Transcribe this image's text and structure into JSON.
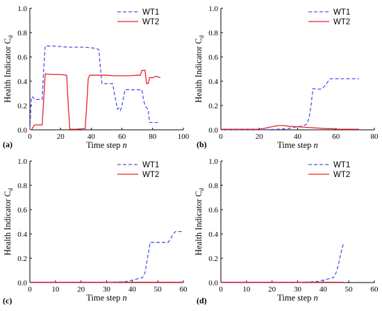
{
  "chart_data": [
    {
      "type": "line",
      "panel_label": "(a)",
      "xlabel": "Time step",
      "xlabel_var": "n",
      "ylabel": "Health Indicator C",
      "ylabel_sub": "d",
      "xlim": [
        0,
        100
      ],
      "xticks": [
        "0",
        "20",
        "40",
        "60",
        "80",
        "100"
      ],
      "ylim": [
        0,
        1.0
      ],
      "yticks": [
        "0.0",
        "0.2",
        "0.4",
        "0.6",
        "0.8",
        "1.0"
      ],
      "legend_position": "top-right",
      "series": [
        {
          "name": "WT1",
          "color": "#4a54e8",
          "dash": "dashed",
          "x": [
            0,
            1,
            2,
            3,
            6,
            8,
            9,
            10,
            15,
            20,
            25,
            30,
            35,
            40,
            43,
            45,
            46,
            47,
            48,
            50,
            52,
            54,
            55,
            56,
            57,
            58,
            59,
            60,
            62,
            65,
            70,
            73,
            74,
            75,
            76,
            77,
            78,
            80,
            85
          ],
          "y": [
            0.0,
            0.27,
            0.27,
            0.25,
            0.25,
            0.25,
            0.5,
            0.69,
            0.69,
            0.685,
            0.68,
            0.68,
            0.68,
            0.675,
            0.67,
            0.66,
            0.5,
            0.38,
            0.38,
            0.38,
            0.38,
            0.38,
            0.3,
            0.24,
            0.17,
            0.18,
            0.16,
            0.2,
            0.33,
            0.33,
            0.33,
            0.33,
            0.25,
            0.2,
            0.18,
            0.17,
            0.06,
            0.06,
            0.06
          ]
        },
        {
          "name": "WT2",
          "color": "#e8212a",
          "dash": "solid",
          "x": [
            0,
            1,
            2,
            3,
            6,
            8,
            9,
            10,
            15,
            20,
            24,
            25,
            26,
            30,
            36,
            37,
            38,
            39,
            40,
            45,
            50,
            55,
            60,
            65,
            70,
            72,
            73,
            74,
            75,
            76,
            77,
            78,
            80,
            82,
            85
          ],
          "y": [
            0.0,
            0.0,
            0.02,
            0.04,
            0.04,
            0.04,
            0.25,
            0.46,
            0.455,
            0.455,
            0.45,
            0.2,
            0.005,
            0.005,
            0.01,
            0.2,
            0.42,
            0.45,
            0.45,
            0.45,
            0.45,
            0.445,
            0.445,
            0.445,
            0.45,
            0.45,
            0.49,
            0.49,
            0.49,
            0.38,
            0.38,
            0.43,
            0.43,
            0.44,
            0.43
          ]
        }
      ]
    },
    {
      "type": "line",
      "panel_label": "(b)",
      "xlabel": "Time step",
      "xlabel_var": "n",
      "ylabel": "Health Indicator C",
      "ylabel_sub": "d",
      "xlim": [
        0,
        80
      ],
      "xticks": [
        "0",
        "20",
        "40",
        "60",
        "80"
      ],
      "ylim": [
        0,
        1.0
      ],
      "yticks": [
        "0.0",
        "0.2",
        "0.4",
        "0.6",
        "0.8",
        "1.0"
      ],
      "legend_position": "top-right",
      "series": [
        {
          "name": "WT1",
          "color": "#4a54e8",
          "dash": "dashed",
          "x": [
            0,
            10,
            20,
            30,
            35,
            38,
            40,
            42,
            44,
            45,
            46,
            47,
            48,
            50,
            52,
            53,
            54,
            55,
            56,
            57,
            58,
            60,
            65,
            70,
            72
          ],
          "y": [
            0.0,
            0.0,
            0.0,
            0.005,
            0.01,
            0.02,
            0.025,
            0.03,
            0.04,
            0.05,
            0.1,
            0.2,
            0.34,
            0.335,
            0.335,
            0.34,
            0.36,
            0.38,
            0.4,
            0.42,
            0.42,
            0.42,
            0.42,
            0.42,
            0.42
          ]
        },
        {
          "name": "WT2",
          "color": "#e8212a",
          "dash": "solid",
          "x": [
            0,
            10,
            20,
            22,
            25,
            28,
            30,
            33,
            35,
            40,
            45,
            50,
            55,
            58,
            60,
            65,
            70,
            72
          ],
          "y": [
            0.005,
            0.005,
            0.005,
            0.01,
            0.02,
            0.03,
            0.035,
            0.035,
            0.03,
            0.025,
            0.02,
            0.015,
            0.01,
            0.01,
            0.005,
            0.005,
            0.005,
            0.005
          ]
        }
      ]
    },
    {
      "type": "line",
      "panel_label": "(c)",
      "xlabel": "Time step",
      "xlabel_var": "n",
      "ylabel": "Health Indicator C",
      "ylabel_sub": "d",
      "xlim": [
        0,
        60
      ],
      "xticks": [
        "0",
        "10",
        "20",
        "30",
        "40",
        "50",
        "60"
      ],
      "ylim": [
        0,
        1.0
      ],
      "yticks": [
        "0.0",
        "0.2",
        "0.4",
        "0.6",
        "0.8",
        "1.0"
      ],
      "legend_position": "top-right",
      "series": [
        {
          "name": "WT1",
          "color": "#4a54e8",
          "dash": "dashed",
          "x": [
            0,
            10,
            20,
            30,
            35,
            38,
            40,
            42,
            44,
            45,
            46,
            47,
            48,
            50,
            52,
            54,
            55,
            56,
            57,
            58,
            59,
            60
          ],
          "y": [
            0.0,
            0.0,
            0.0,
            0.0,
            0.005,
            0.01,
            0.02,
            0.03,
            0.04,
            0.08,
            0.2,
            0.33,
            0.33,
            0.33,
            0.33,
            0.33,
            0.36,
            0.4,
            0.42,
            0.42,
            0.42,
            0.42
          ]
        },
        {
          "name": "WT2",
          "color": "#e8212a",
          "dash": "solid",
          "x": [
            0,
            10,
            20,
            30,
            40,
            50,
            60
          ],
          "y": [
            0.003,
            0.003,
            0.003,
            0.003,
            0.003,
            0.003,
            0.003
          ]
        }
      ]
    },
    {
      "type": "line",
      "panel_label": "(d)",
      "xlabel": "Time step",
      "xlabel_var": "n",
      "ylabel": "Health Indicator C",
      "ylabel_sub": "d",
      "xlim": [
        0,
        60
      ],
      "xticks": [
        "0",
        "10",
        "20",
        "30",
        "40",
        "50",
        "60"
      ],
      "ylim": [
        0,
        1.0
      ],
      "yticks": [
        "0.0",
        "0.2",
        "0.4",
        "0.6",
        "0.8",
        "1.0"
      ],
      "legend_position": "top-right",
      "series": [
        {
          "name": "WT1",
          "color": "#4a54e8",
          "dash": "dashed",
          "x": [
            0,
            10,
            20,
            30,
            35,
            38,
            40,
            42,
            44,
            45,
            46,
            47,
            48
          ],
          "y": [
            0.0,
            0.0,
            0.0,
            0.0,
            0.005,
            0.01,
            0.02,
            0.03,
            0.04,
            0.08,
            0.15,
            0.25,
            0.33
          ]
        },
        {
          "name": "WT2",
          "color": "#e8212a",
          "dash": "solid",
          "x": [
            0,
            10,
            20,
            30,
            40,
            48
          ],
          "y": [
            0.003,
            0.003,
            0.003,
            0.003,
            0.003,
            0.003
          ]
        }
      ]
    }
  ]
}
